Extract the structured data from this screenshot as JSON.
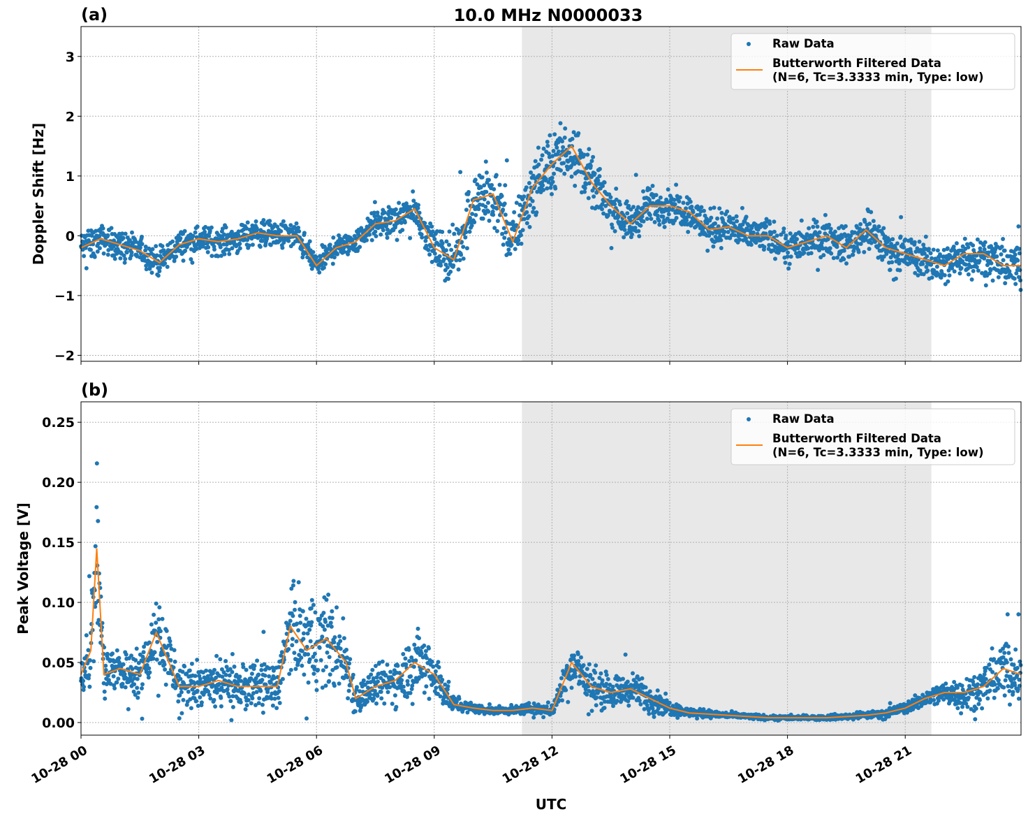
{
  "title": "10.0 MHz N0000033",
  "xlabel": "UTC",
  "colors": {
    "raw": "#1f77b4",
    "filtered": "#ff7f0e",
    "shade": "#e8e8e8",
    "grid": "#b0b0b0"
  },
  "chart_data": [
    {
      "type": "scatter+line",
      "panel_label": "(a)",
      "ylabel": "Doppler Shift [Hz]",
      "xlim": [
        "00:00",
        "23:57"
      ],
      "ylim": [
        -2.1,
        3.5
      ],
      "xticks": [
        "00:00",
        "03:00",
        "06:00",
        "09:00",
        "12:00",
        "15:00",
        "18:00",
        "21:00"
      ],
      "xtick_labels": [
        "10-28 00",
        "10-28 03",
        "10-28 06",
        "10-28 09",
        "10-28 12",
        "10-28 15",
        "10-28 18",
        "10-28 21"
      ],
      "yticks": [
        -2,
        -1,
        0,
        1,
        2,
        3
      ],
      "ytick_labels": [
        "−2",
        "−1",
        "0",
        "1",
        "2",
        "3"
      ],
      "grid": true,
      "shaded_span": [
        "11:14",
        "21:40"
      ],
      "legend": {
        "placement": "top-right",
        "entries": [
          "Raw Data",
          "Butterworth Filtered Data",
          "(N=6, Tc=3.3333 min, Type: low)"
        ]
      },
      "x": [
        "00:00",
        "00:30",
        "01:00",
        "01:30",
        "02:00",
        "02:30",
        "03:00",
        "03:30",
        "04:00",
        "04:30",
        "05:00",
        "05:30",
        "06:00",
        "06:30",
        "07:00",
        "07:30",
        "08:00",
        "08:30",
        "09:00",
        "09:30",
        "10:00",
        "10:30",
        "11:00",
        "11:30",
        "12:00",
        "12:30",
        "13:00",
        "13:30",
        "14:00",
        "14:30",
        "15:00",
        "15:30",
        "16:00",
        "16:30",
        "17:00",
        "17:30",
        "18:00",
        "18:30",
        "19:00",
        "19:30",
        "20:00",
        "20:30",
        "21:00",
        "21:30",
        "22:00",
        "22:30",
        "23:00",
        "23:30",
        "23:57"
      ],
      "series": [
        {
          "name": "Butterworth Filtered Data",
          "values": [
            -0.2,
            -0.05,
            -0.15,
            -0.25,
            -0.45,
            -0.15,
            -0.05,
            -0.1,
            -0.05,
            0.05,
            0.0,
            0.0,
            -0.5,
            -0.2,
            -0.1,
            0.2,
            0.25,
            0.45,
            -0.2,
            -0.4,
            0.6,
            0.7,
            -0.1,
            0.8,
            1.2,
            1.5,
            0.9,
            0.5,
            0.2,
            0.5,
            0.5,
            0.4,
            0.1,
            0.15,
            0.0,
            0.0,
            -0.2,
            -0.1,
            0.0,
            -0.2,
            0.1,
            -0.2,
            -0.3,
            -0.4,
            -0.5,
            -0.3,
            -0.3,
            -0.5,
            -0.5
          ]
        },
        {
          "name": "Raw Data",
          "spread": [
            0.4,
            0.35,
            0.35,
            0.35,
            0.35,
            0.35,
            0.35,
            0.35,
            0.35,
            0.35,
            0.35,
            0.35,
            0.35,
            0.3,
            0.3,
            0.35,
            0.4,
            0.4,
            0.45,
            0.7,
            0.8,
            0.8,
            0.8,
            0.7,
            0.8,
            0.8,
            0.6,
            0.5,
            0.5,
            0.5,
            0.45,
            0.45,
            0.5,
            0.5,
            0.45,
            0.45,
            0.45,
            0.45,
            0.45,
            0.45,
            0.5,
            0.45,
            0.45,
            0.5,
            0.55,
            0.5,
            0.45,
            0.55,
            0.55
          ]
        }
      ]
    },
    {
      "type": "scatter+line",
      "panel_label": "(b)",
      "ylabel": "Peak Voltage [V]",
      "xlim": [
        "00:00",
        "23:57"
      ],
      "ylim": [
        -0.0105,
        0.267
      ],
      "xticks": [
        "00:00",
        "03:00",
        "06:00",
        "09:00",
        "12:00",
        "15:00",
        "18:00",
        "21:00"
      ],
      "xtick_labels": [
        "10-28 00",
        "10-28 03",
        "10-28 06",
        "10-28 09",
        "10-28 12",
        "10-28 15",
        "10-28 18",
        "10-28 21"
      ],
      "yticks": [
        0,
        0.05,
        0.1,
        0.15,
        0.2,
        0.25
      ],
      "ytick_labels": [
        "0.00",
        "0.05",
        "0.10",
        "0.15",
        "0.20",
        "0.25"
      ],
      "grid": true,
      "shaded_span": [
        "11:14",
        "21:40"
      ],
      "legend": {
        "placement": "top-right",
        "entries": [
          "Raw Data",
          "Butterworth Filtered Data",
          "(N=6, Tc=3.3333 min, Type: low)"
        ]
      },
      "x": [
        "00:00",
        "00:15",
        "00:24",
        "00:35",
        "01:00",
        "01:30",
        "01:55",
        "02:30",
        "03:00",
        "03:30",
        "04:00",
        "04:30",
        "05:00",
        "05:20",
        "05:45",
        "06:15",
        "06:45",
        "07:00",
        "07:30",
        "08:00",
        "08:30",
        "09:00",
        "09:30",
        "10:00",
        "10:30",
        "11:00",
        "11:30",
        "12:00",
        "12:30",
        "13:00",
        "13:30",
        "14:00",
        "14:30",
        "15:00",
        "15:30",
        "16:00",
        "16:30",
        "17:00",
        "17:30",
        "18:00",
        "18:30",
        "19:00",
        "19:30",
        "20:00",
        "20:30",
        "21:00",
        "21:30",
        "22:00",
        "22:30",
        "23:00",
        "23:30",
        "23:57"
      ],
      "series": [
        {
          "name": "Butterworth Filtered Data",
          "values": [
            0.04,
            0.06,
            0.145,
            0.04,
            0.045,
            0.04,
            0.075,
            0.03,
            0.03,
            0.035,
            0.03,
            0.03,
            0.03,
            0.08,
            0.06,
            0.07,
            0.05,
            0.02,
            0.03,
            0.035,
            0.05,
            0.04,
            0.015,
            0.012,
            0.01,
            0.01,
            0.012,
            0.01,
            0.05,
            0.03,
            0.025,
            0.028,
            0.02,
            0.012,
            0.008,
            0.007,
            0.006,
            0.005,
            0.004,
            0.004,
            0.004,
            0.004,
            0.005,
            0.006,
            0.008,
            0.012,
            0.02,
            0.025,
            0.025,
            0.03,
            0.045,
            0.04
          ]
        },
        {
          "name": "Raw Data",
          "spread": [
            0.03,
            0.05,
            0.1,
            0.04,
            0.03,
            0.03,
            0.05,
            0.03,
            0.03,
            0.03,
            0.03,
            0.03,
            0.03,
            0.05,
            0.08,
            0.06,
            0.05,
            0.02,
            0.025,
            0.03,
            0.045,
            0.035,
            0.01,
            0.006,
            0.005,
            0.005,
            0.007,
            0.008,
            0.03,
            0.03,
            0.02,
            0.02,
            0.02,
            0.01,
            0.006,
            0.005,
            0.004,
            0.004,
            0.003,
            0.003,
            0.003,
            0.003,
            0.004,
            0.004,
            0.005,
            0.007,
            0.01,
            0.015,
            0.02,
            0.025,
            0.04,
            0.035
          ]
        }
      ]
    }
  ]
}
